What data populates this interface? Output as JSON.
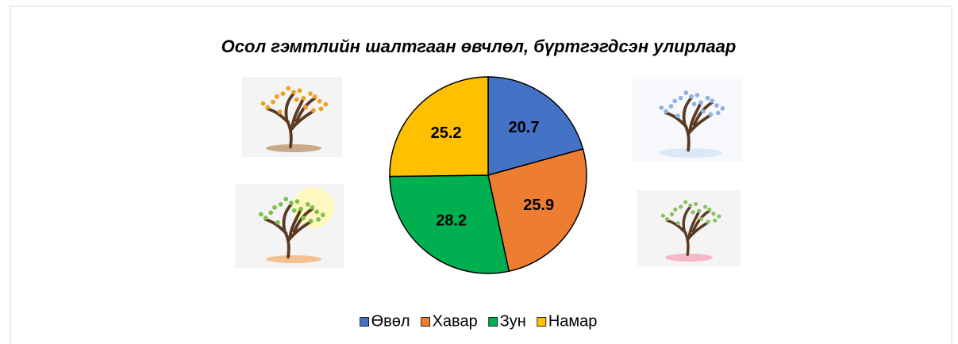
{
  "chart_data": {
    "type": "pie",
    "title": "Осол гэмтлийн шалтгаан өвчлөл, бүртгэгдсэн улирлаар",
    "categories": [
      "Өвөл",
      "Хавар",
      "Зун",
      "Намар"
    ],
    "values": [
      20.7,
      25.9,
      28.2,
      25.2
    ],
    "colors": [
      "#4472c4",
      "#ed7d31",
      "#00b050",
      "#ffc000"
    ],
    "legend": "bottom"
  }
}
